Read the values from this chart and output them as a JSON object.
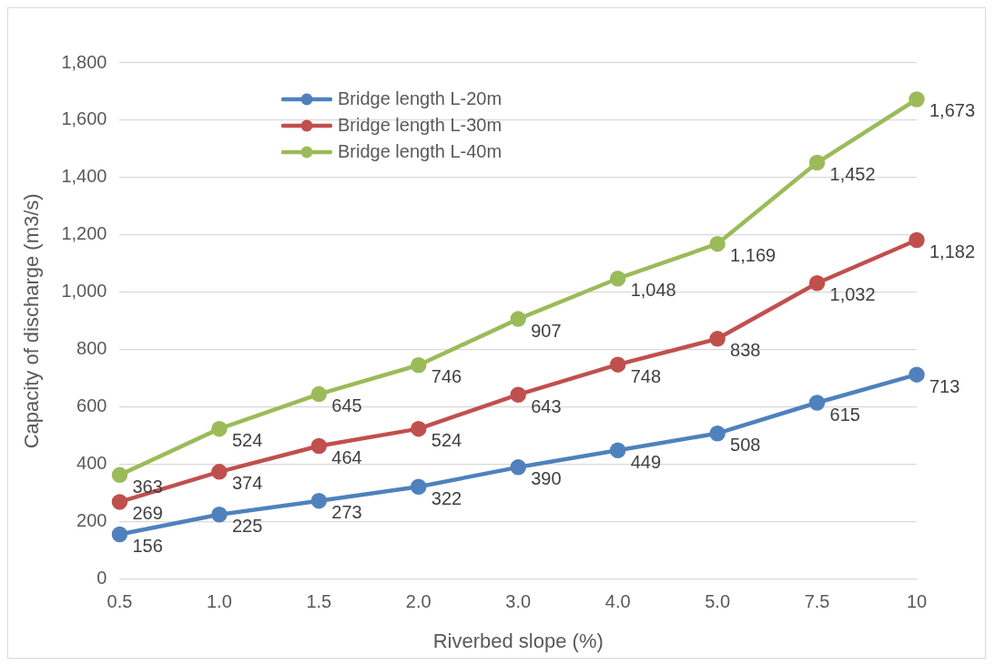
{
  "chart_data": {
    "type": "line",
    "xlabel": "Riverbed slope (%)",
    "ylabel": "Capacity of discharge (m3/s)",
    "categories": [
      "0.5",
      "1.0",
      "1.5",
      "2.0",
      "3.0",
      "4.0",
      "5.0",
      "7.5",
      "10"
    ],
    "series": [
      {
        "name": "Bridge length L-20m",
        "color": "#4f81bd",
        "values": [
          156,
          225,
          273,
          322,
          390,
          449,
          508,
          615,
          713
        ],
        "value_labels": [
          "156",
          "225",
          "273",
          "322",
          "390",
          "449",
          "508",
          "615",
          "713"
        ]
      },
      {
        "name": "Bridge length L-30m",
        "color": "#c0504d",
        "values": [
          269,
          374,
          464,
          524,
          643,
          748,
          838,
          1032,
          1182
        ],
        "value_labels": [
          "269",
          "374",
          "464",
          "524",
          "643",
          "748",
          "838",
          "1,032",
          "1,182"
        ]
      },
      {
        "name": "Bridge length L-40m",
        "color": "#9bbb59",
        "values": [
          363,
          524,
          645,
          746,
          907,
          1048,
          1169,
          1452,
          1673
        ],
        "value_labels": [
          "363",
          "524",
          "645",
          "746",
          "907",
          "1,048",
          "1,169",
          "1,452",
          "1,673"
        ]
      }
    ],
    "ylim": [
      0,
      1800
    ],
    "yticks": [
      0,
      {
        "value": 200,
        "label": "200"
      },
      {
        "value": 400,
        "label": "400"
      },
      {
        "value": 600,
        "label": "600"
      },
      {
        "value": 800,
        "label": "800"
      },
      {
        "value": 1000,
        "label": "1,000"
      },
      {
        "value": 1200,
        "label": "1,200"
      },
      {
        "value": 1400,
        "label": "1,400"
      },
      {
        "value": 1600,
        "label": "1,600"
      },
      {
        "value": 1800,
        "label": "1,800"
      }
    ],
    "grid": "y",
    "legend": "top left",
    "marker": "circle",
    "line_style": "solid"
  }
}
